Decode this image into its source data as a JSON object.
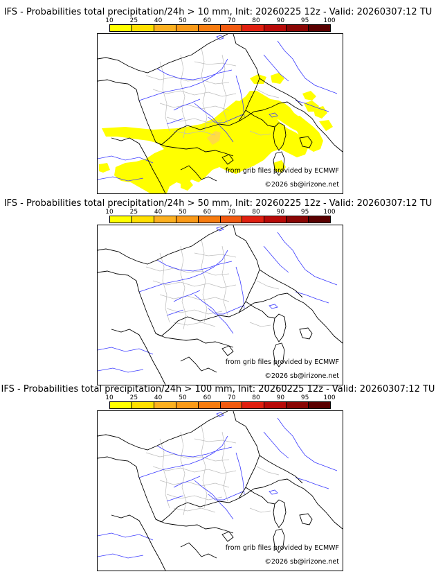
{
  "colorbar": {
    "ticks": [
      "10",
      "25",
      "40",
      "50",
      "60",
      "70",
      "80",
      "90",
      "95",
      "100"
    ],
    "colors": [
      "#ffff00",
      "#ffe000",
      "#fcb020",
      "#fa9a18",
      "#f77c10",
      "#f25a10",
      "#e02010",
      "#b80a08",
      "#8a0604",
      "#5a0000"
    ]
  },
  "panels": [
    {
      "title": "IFS - Probabilities total precipitation/24h > 10 mm, Init: 20260225 12z - Valid: 20260307:12 TU",
      "credit_source": "from grib files provided by ECMWF",
      "credit_copyright": "©2026 sb@irizone.net",
      "has_precip": true
    },
    {
      "title": "IFS - Probabilities total precipitation/24h > 50 mm, Init: 20260225 12z - Valid: 20260307:12 TU",
      "credit_source": "from grib files provided by ECMWF",
      "credit_copyright": "©2026 sb@irizone.net",
      "has_precip": false
    },
    {
      "title": "IFS - Probabilities total precipitation/24h > 100 mm, Init: 20260225 12z - Valid: 20260307:12 TU",
      "credit_source": "from grib files provided by ECMWF",
      "credit_copyright": "©2026 sb@irizone.net",
      "has_precip": false
    }
  ]
}
